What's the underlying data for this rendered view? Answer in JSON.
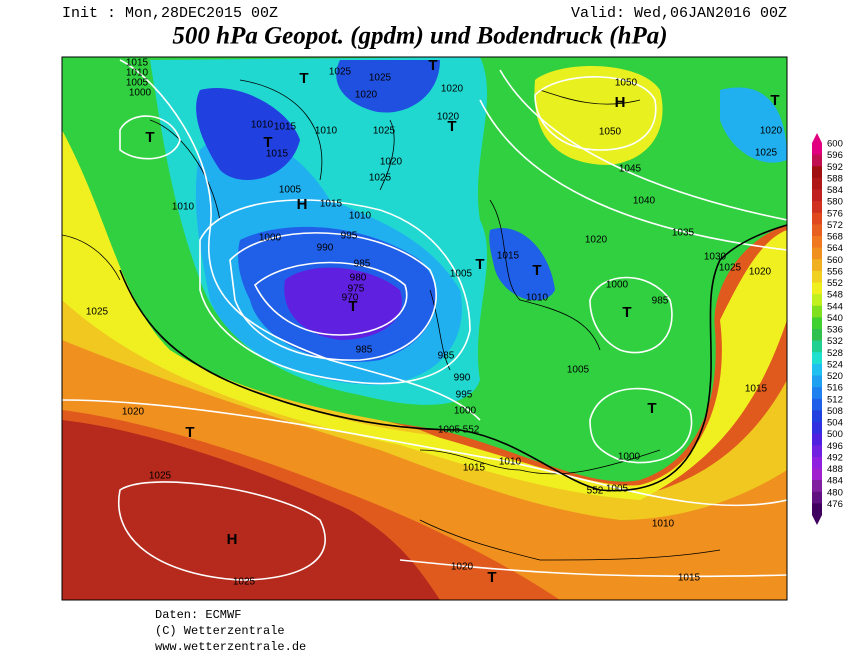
{
  "header": {
    "init": "Init : Mon,28DEC2015 00Z",
    "valid": "Valid: Wed,06JAN2016 00Z",
    "title": "500 hPa Geopot. (gpdm) und Bodendruck (hPa)"
  },
  "legend": {
    "levels": [
      600,
      596,
      592,
      588,
      584,
      580,
      576,
      572,
      568,
      564,
      560,
      556,
      552,
      548,
      544,
      540,
      536,
      532,
      528,
      524,
      520,
      516,
      512,
      508,
      504,
      500,
      496,
      492,
      488,
      484,
      480,
      476
    ],
    "colors": [
      "#e00080",
      "#c01050",
      "#a01010",
      "#b01818",
      "#c02020",
      "#d03020",
      "#e04820",
      "#e86020",
      "#f07820",
      "#f09020",
      "#f0b020",
      "#f0d020",
      "#f0f020",
      "#c0f020",
      "#80e020",
      "#40d030",
      "#30c050",
      "#20d090",
      "#20e0d0",
      "#20c0f0",
      "#20a0f0",
      "#2080f0",
      "#2060e8",
      "#2040e0",
      "#3030e0",
      "#5020e0",
      "#7020e0",
      "#9020e0",
      "#a020d0",
      "#8020a0",
      "#601080",
      "#400060"
    ]
  },
  "map": {
    "labels": [
      1015,
      1010,
      1005,
      1000,
      "T",
      1015,
      1015,
      1010,
      "T",
      1010,
      1025,
      1025,
      1020,
      "T",
      1025,
      1020,
      1025,
      1005,
      "H",
      1015,
      1010,
      1010,
      1000,
      995,
      990,
      985,
      980,
      975,
      970,
      "T",
      985,
      985,
      990,
      995,
      1000,
      1005,
      552,
      1025,
      1020,
      "T",
      1025,
      "H",
      1025,
      1015,
      1010,
      1020,
      "T",
      1010,
      1015,
      1005,
      552,
      1000,
      "T",
      1005,
      1000,
      985,
      "T",
      1010,
      1015,
      "T",
      "T",
      1005,
      1020,
      1030,
      1025,
      1020,
      1035,
      1040,
      1045,
      1050,
      1050,
      "H",
      1020,
      1020,
      "T",
      "T",
      "T",
      1020,
      1025,
      1015
    ]
  },
  "footer": {
    "source": "Daten: ECMWF",
    "copyright": "(C) Wetterzentrale",
    "url": "www.wetterzentrale.de"
  }
}
